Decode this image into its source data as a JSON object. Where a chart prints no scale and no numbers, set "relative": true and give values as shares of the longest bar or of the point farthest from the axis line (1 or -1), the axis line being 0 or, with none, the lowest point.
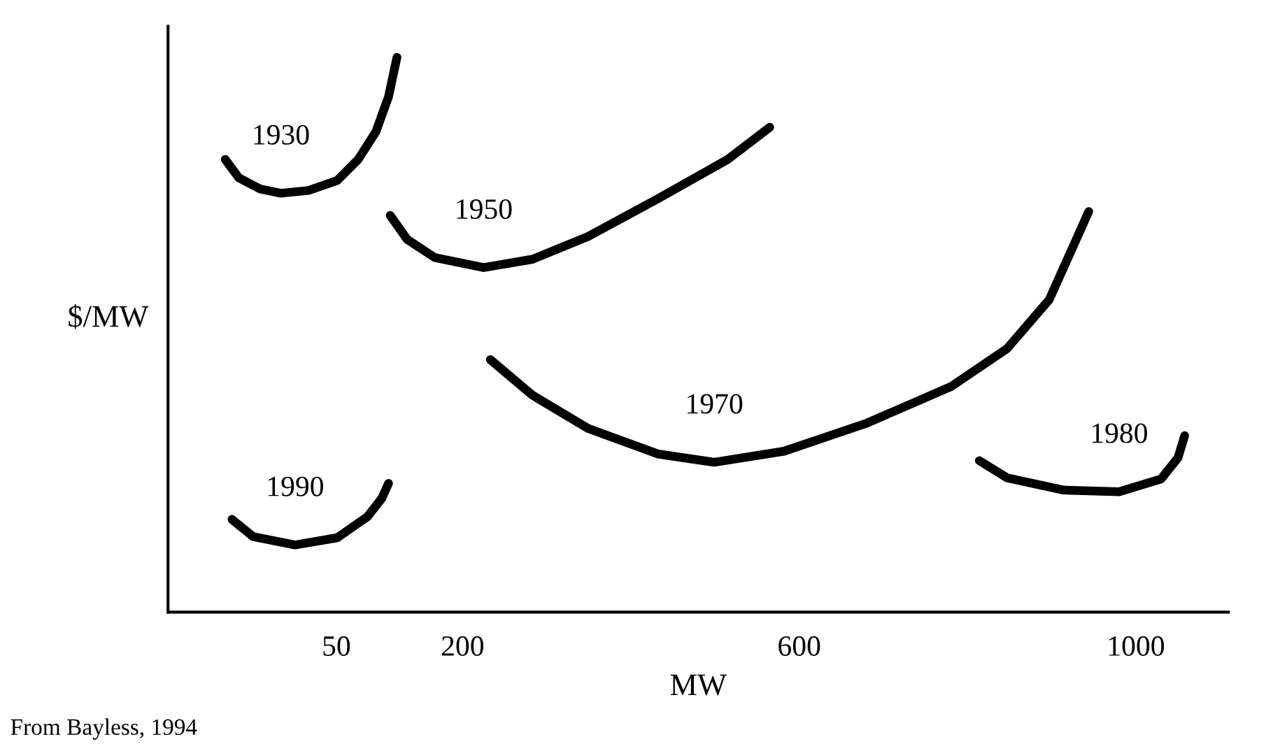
{
  "chart_data": {
    "type": "line",
    "relative": true,
    "xlabel": "MW",
    "ylabel": "$/MW",
    "xlim": [
      -150,
      1110
    ],
    "xticks": [
      50,
      200,
      600,
      1000
    ],
    "tick_labels": "x",
    "grid": false,
    "legend": false,
    "marker": "none",
    "line_style": "solid",
    "annotations": [
      "From Bayless, 1994"
    ],
    "series": [
      {
        "name": "1930",
        "color": "#000000",
        "x": [
          -82,
          -66,
          -41,
          -16,
          17,
          51,
          76,
          97,
          112,
          122
        ],
        "values": [
          0.816,
          0.783,
          0.763,
          0.755,
          0.76,
          0.778,
          0.816,
          0.866,
          0.929,
          1.0
        ]
      },
      {
        "name": "1950",
        "color": "#000000",
        "x": [
          114,
          134,
          167,
          225,
          283,
          349,
          432,
          515,
          565
        ],
        "values": [
          0.715,
          0.672,
          0.639,
          0.621,
          0.636,
          0.677,
          0.745,
          0.816,
          0.874
        ]
      },
      {
        "name": "1970",
        "color": "#000000",
        "x": [
          233,
          283,
          349,
          432,
          499,
          582,
          681,
          781,
          847,
          897,
          944
        ],
        "values": [
          0.455,
          0.391,
          0.331,
          0.285,
          0.27,
          0.29,
          0.341,
          0.407,
          0.475,
          0.563,
          0.722
        ]
      },
      {
        "name": "1980",
        "color": "#000000",
        "x": [
          814,
          847,
          914,
          980,
          1030,
          1050,
          1058
        ],
        "values": [
          0.273,
          0.242,
          0.22,
          0.217,
          0.24,
          0.278,
          0.318
        ]
      },
      {
        "name": "1990",
        "color": "#000000",
        "x": [
          -74,
          -49,
          1,
          51,
          87,
          104,
          112
        ],
        "values": [
          0.167,
          0.136,
          0.121,
          0.134,
          0.172,
          0.205,
          0.232
        ]
      }
    ]
  }
}
